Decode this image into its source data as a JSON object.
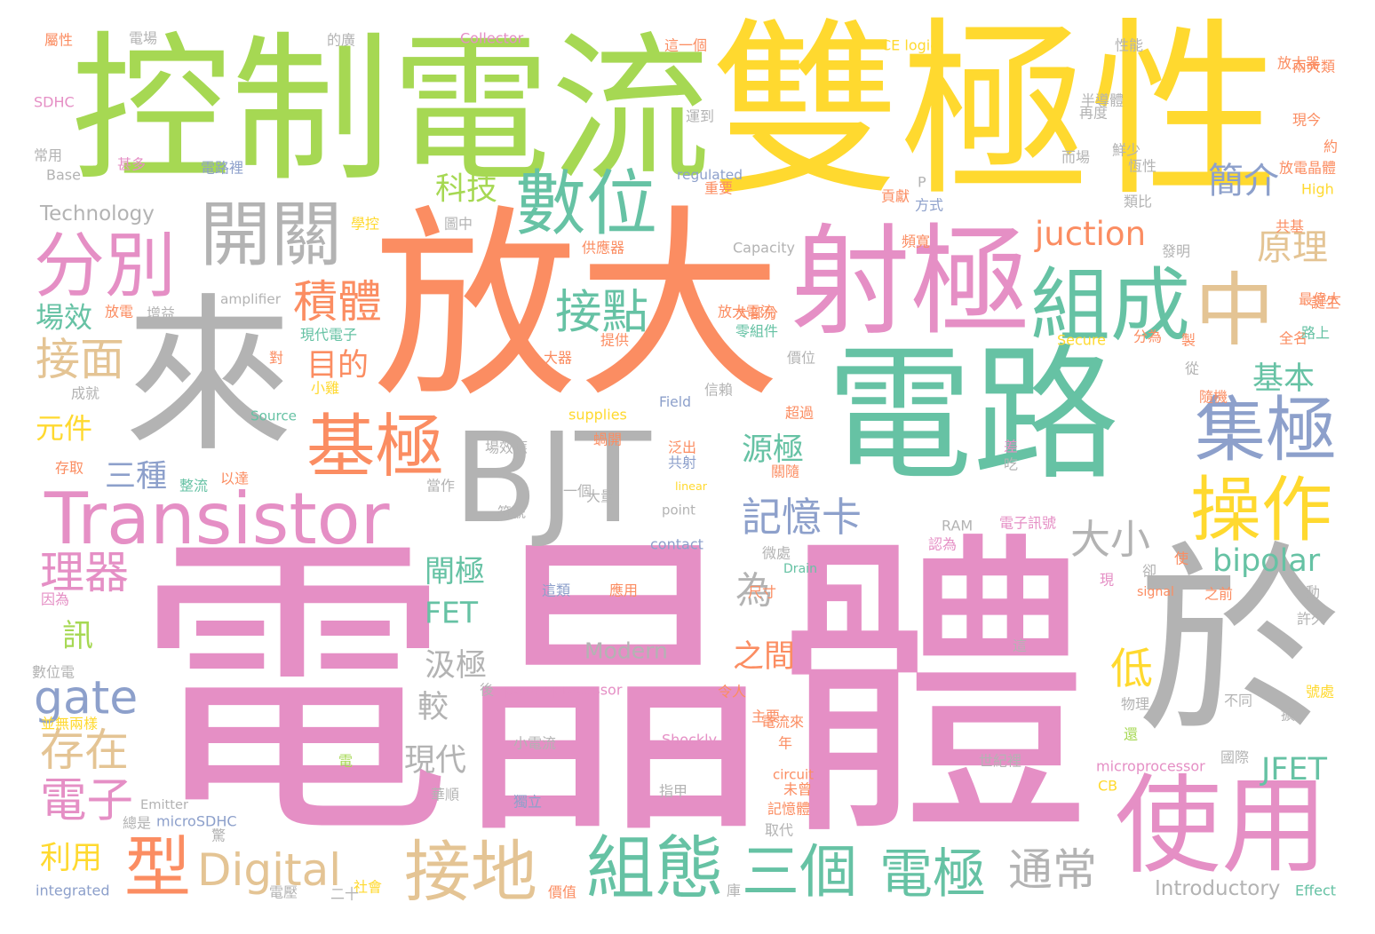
{
  "colors": {
    "pink": "#e58fc5",
    "orange": "#fb8d62",
    "green": "#66c2a4",
    "lime": "#a6d853",
    "yellow": "#ffd92f",
    "tan": "#e4c494",
    "grey": "#b3b3b3",
    "blue": "#8da0cb",
    "background": "#ffffff"
  },
  "words": {
    "w001": "電晶體",
    "w002": "放大",
    "w003": "雙極性",
    "w004": "控制電流",
    "w005": "來",
    "w006": "BJT",
    "w007": "電路",
    "w008": "於",
    "w009": "射極",
    "w010": "Transistor",
    "w011": "組成",
    "w012": "使用",
    "w013": "中",
    "w014": "數位",
    "w015": "開關",
    "w016": "分別",
    "w017": "集極",
    "w018": "操作",
    "w019": "基極",
    "w020": "接地",
    "w021": "組態",
    "w022": "型",
    "w023": "Digital",
    "w024": "三個",
    "w025": "電極",
    "w026": "通常",
    "w027": "接點",
    "w028": "接面",
    "w029": "積體",
    "w030": "gate",
    "w031": "存在",
    "w032": "電子",
    "w033": "理器",
    "w034": "記憶卡",
    "w035": "大小",
    "w036": "科技",
    "w037": "簡介",
    "w038": "原理",
    "w039": "juction",
    "w040": "bipolar",
    "w041": "FET",
    "w042": "JFET",
    "w043": "場效",
    "w044": "目的",
    "w045": "基本",
    "w046": "元件",
    "w047": "源極",
    "w048": "三種",
    "w049": "閘極",
    "w050": "汲極",
    "w051": "之間",
    "w052": "為",
    "w053": "低",
    "w054": "訊",
    "w055": "較",
    "w056": "現代",
    "w057": "利用",
    "w058": "Modern",
    "w059": "Introductory",
    "w060": "Technology",
    "w061": "屬性",
    "w062": "電場",
    "w063": "的廣",
    "w064": "Collector",
    "w065": "這一個",
    "w066": "CE logic",
    "w067": "性能",
    "w068": "放大器",
    "w069": "兩大類",
    "w070": "SDHC",
    "w071": "半導體",
    "w072": "再度",
    "w073": "運到",
    "w074": "現今",
    "w075": "常用",
    "w076": "甚多",
    "w077": "電路裡",
    "w078": "Base",
    "w079": "regulated",
    "w080": "重要",
    "w081": "而場",
    "w082": "鮮少",
    "w083": "恆性",
    "w084": "約",
    "w085": "放電晶體",
    "w086": "High",
    "w087": "P",
    "w088": "貢獻",
    "w089": "方式",
    "w090": "類比",
    "w091": "學控",
    "w092": "圖中",
    "w093": "頻寬",
    "w094": "供應器",
    "w095": "Capacity",
    "w096": "發明",
    "w097": "共基",
    "w098": "amplifier",
    "w099": "放大電流",
    "w100": "最偉大",
    "w101": "放電",
    "w102": "增益",
    "w103": "大部分",
    "w104": "誕生",
    "w105": "現代電子",
    "w106": "零組件",
    "w107": "提供",
    "w108": "Secure",
    "w109": "分為",
    "w110": "全名",
    "w111": "製",
    "w112": "路上",
    "w113": "對",
    "w114": "大器",
    "w115": "價位",
    "w116": "從",
    "w117": "成就",
    "w118": "小雞",
    "w119": "Field",
    "w120": "信賴",
    "w121": "超過",
    "w122": "隨機",
    "w123": "supplies",
    "w124": "Source",
    "w125": "場效應",
    "w126": "蝸開",
    "w127": "泛出",
    "w128": "關隨",
    "w129": "差",
    "w130": "吃",
    "w131": "共射",
    "w132": "存取",
    "w133": "整流",
    "w134": "以達",
    "w135": "一個",
    "w136": "當作",
    "w137": "大量",
    "w138": "linear",
    "w139": "point",
    "w140": "符號",
    "w141": "RAM",
    "w142": "電子訊號",
    "w143": "認為",
    "w144": "contact",
    "w145": "微處",
    "w146": "Drain",
    "w147": "卻",
    "w148": "使",
    "w149": "現",
    "w150": "因為",
    "w151": "這類",
    "w152": "應用",
    "w153": "尺寸",
    "w154": "signal",
    "w155": "之前",
    "w156": "動",
    "w157": "許久",
    "w158": "數位電",
    "w159": "後",
    "w160": "power processor",
    "w161": "令人",
    "w162": "主要",
    "w163": "不同",
    "w164": "號處",
    "w165": "並無兩樣",
    "w166": "物理",
    "w167": "擴",
    "w168": "小電流",
    "w169": "Shockly",
    "w170": "電流來",
    "w171": "年",
    "w172": "還",
    "w173": "國際",
    "w174": "電",
    "w175": "世紀裡",
    "w176": "microprocessor",
    "w177": "circuit",
    "w178": "未曾",
    "w179": "CB",
    "w180": "華順",
    "w181": "獨立",
    "w182": "指甲",
    "w183": "Emitter",
    "w184": "記憶體",
    "w185": "總是",
    "w186": "microSDHC",
    "w187": "驚",
    "w188": "取代",
    "w189": "integrated",
    "w190": "社會",
    "w191": "價值",
    "w192": "電壓",
    "w193": "二十",
    "w194": "庫",
    "w195": "Effect",
    "w196": "這"
  }
}
